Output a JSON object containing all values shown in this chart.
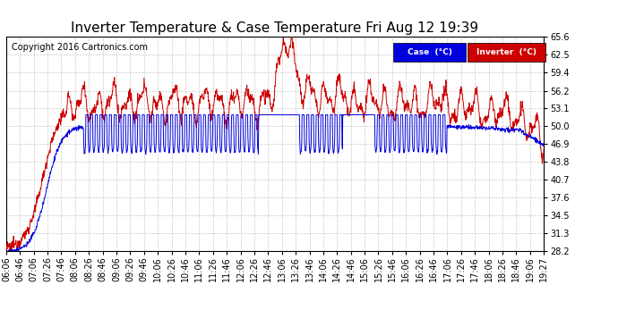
{
  "title": "Inverter Temperature & Case Temperature Fri Aug 12 19:39",
  "copyright": "Copyright 2016 Cartronics.com",
  "yticks": [
    28.2,
    31.3,
    34.5,
    37.6,
    40.7,
    43.8,
    46.9,
    50.0,
    53.1,
    56.2,
    59.4,
    62.5,
    65.6
  ],
  "ymin": 28.2,
  "ymax": 65.6,
  "bg_color": "#ffffff",
  "plot_bg_color": "#ffffff",
  "grid_color": "#bbbbbb",
  "case_color": "#0000dd",
  "inverter_color": "#cc0000",
  "legend_case_bg": "#0000dd",
  "legend_inverter_bg": "#cc0000",
  "legend_case_text": "Case  (°C)",
  "legend_inverter_text": "Inverter  (°C)",
  "xtick_labels": [
    "06:06",
    "06:46",
    "07:06",
    "07:26",
    "07:46",
    "08:06",
    "08:26",
    "08:46",
    "09:06",
    "09:26",
    "09:46",
    "10:06",
    "10:26",
    "10:46",
    "11:06",
    "11:26",
    "11:46",
    "12:06",
    "12:26",
    "12:46",
    "13:06",
    "13:26",
    "13:46",
    "14:06",
    "14:26",
    "14:46",
    "15:06",
    "15:26",
    "15:46",
    "16:06",
    "16:26",
    "16:46",
    "17:06",
    "17:26",
    "17:46",
    "18:06",
    "18:26",
    "18:46",
    "19:06",
    "19:27"
  ],
  "title_fontsize": 11,
  "copyright_fontsize": 7,
  "tick_fontsize": 7
}
